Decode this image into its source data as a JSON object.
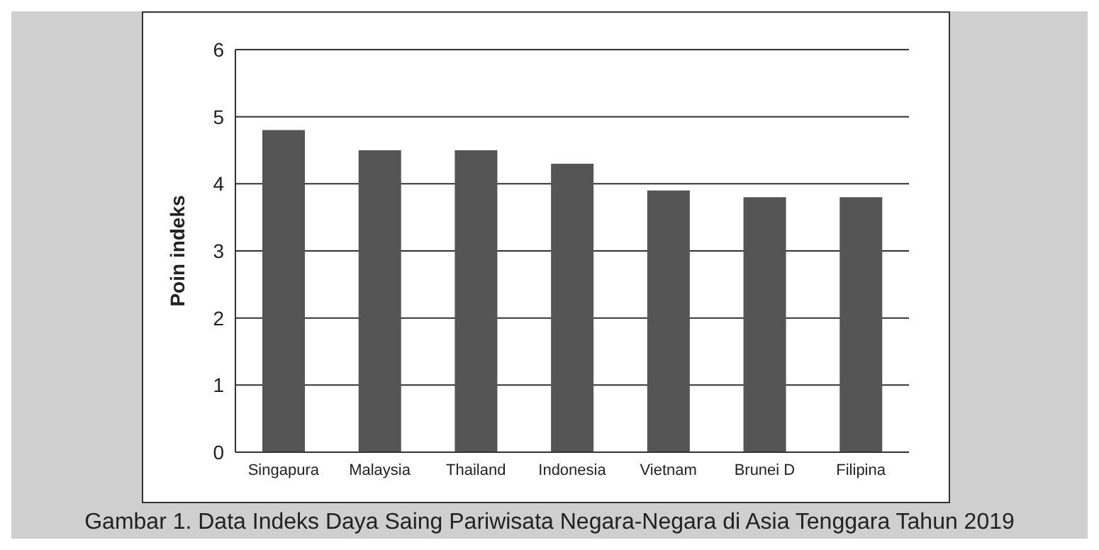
{
  "chart_data": {
    "type": "bar",
    "title": "Gambar 1. Data Indeks Daya Saing Pariwisata Negara-Negara di Asia Tenggara Tahun 2019",
    "ylabel": "Poin indeks",
    "categories": [
      "Singapura",
      "Malaysia",
      "Thailand",
      "Indonesia",
      "Vietnam",
      "Brunei D",
      "Filipina"
    ],
    "values": [
      4.8,
      4.5,
      4.5,
      4.3,
      3.9,
      3.8,
      3.8
    ],
    "color": "#555555",
    "ylim": [
      0,
      6
    ],
    "yticks": [
      0,
      1,
      2,
      3,
      4,
      5,
      6
    ],
    "grid": "y"
  }
}
